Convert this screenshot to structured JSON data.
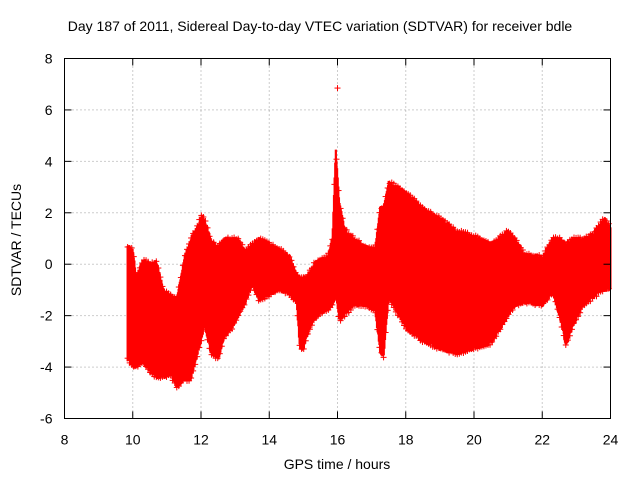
{
  "chart_data": {
    "type": "scatter",
    "title": "Day 187 of 2011, Sidereal Day-to-day VTEC variation (SDTVAR) for receiver bdle",
    "xlabel": "GPS time / hours",
    "ylabel": "SDTVAR / TECUs",
    "xlim": [
      8,
      24
    ],
    "ylim": [
      -6,
      8
    ],
    "xticks": [
      8,
      10,
      12,
      14,
      16,
      18,
      20,
      22,
      24
    ],
    "yticks": [
      -6,
      -4,
      -2,
      0,
      2,
      4,
      6,
      8
    ],
    "grid": true,
    "marker": "+",
    "series_color": "#ff0000",
    "outlier": {
      "x": 16.0,
      "y": 6.85
    },
    "envelope": [
      {
        "x": 9.85,
        "min": -3.7,
        "max": 0.7
      },
      {
        "x": 10.0,
        "min": -4.0,
        "max": 0.6
      },
      {
        "x": 10.1,
        "min": -4.0,
        "max": -0.5
      },
      {
        "x": 10.3,
        "min": -3.8,
        "max": 0.2
      },
      {
        "x": 10.5,
        "min": -4.2,
        "max": 0.0
      },
      {
        "x": 10.7,
        "min": -4.4,
        "max": 0.1
      },
      {
        "x": 10.9,
        "min": -4.4,
        "max": -1.0
      },
      {
        "x": 11.1,
        "min": -4.3,
        "max": -1.2
      },
      {
        "x": 11.3,
        "min": -4.8,
        "max": -1.3
      },
      {
        "x": 11.5,
        "min": -4.5,
        "max": 0.2
      },
      {
        "x": 11.7,
        "min": -4.5,
        "max": 1.0
      },
      {
        "x": 11.9,
        "min": -3.5,
        "max": 1.5
      },
      {
        "x": 12.0,
        "min": -3.0,
        "max": 1.9
      },
      {
        "x": 12.1,
        "min": -2.4,
        "max": 1.8
      },
      {
        "x": 12.3,
        "min": -3.5,
        "max": 0.9
      },
      {
        "x": 12.5,
        "min": -3.7,
        "max": 0.7
      },
      {
        "x": 12.7,
        "min": -2.8,
        "max": 1.0
      },
      {
        "x": 12.9,
        "min": -2.5,
        "max": 1.0
      },
      {
        "x": 13.1,
        "min": -2.0,
        "max": 1.0
      },
      {
        "x": 13.3,
        "min": -1.5,
        "max": 0.5
      },
      {
        "x": 13.5,
        "min": -0.8,
        "max": 0.8
      },
      {
        "x": 13.7,
        "min": -1.4,
        "max": 1.0
      },
      {
        "x": 14.0,
        "min": -1.2,
        "max": 0.8
      },
      {
        "x": 14.3,
        "min": -1.0,
        "max": 0.6
      },
      {
        "x": 14.6,
        "min": -1.2,
        "max": 0.3
      },
      {
        "x": 14.8,
        "min": -1.5,
        "max": -0.4
      },
      {
        "x": 14.9,
        "min": -3.3,
        "max": -0.5
      },
      {
        "x": 15.0,
        "min": -3.3,
        "max": -0.5
      },
      {
        "x": 15.1,
        "min": -2.8,
        "max": -0.5
      },
      {
        "x": 15.3,
        "min": -2.2,
        "max": 0.0
      },
      {
        "x": 15.5,
        "min": -1.9,
        "max": 0.2
      },
      {
        "x": 15.7,
        "min": -1.8,
        "max": 0.3
      },
      {
        "x": 15.85,
        "min": -1.6,
        "max": 1.0
      },
      {
        "x": 15.95,
        "min": -1.2,
        "max": 4.5
      },
      {
        "x": 16.05,
        "min": -2.2,
        "max": 2.5
      },
      {
        "x": 16.2,
        "min": -2.0,
        "max": 1.4
      },
      {
        "x": 16.5,
        "min": -1.6,
        "max": 1.0
      },
      {
        "x": 16.8,
        "min": -1.6,
        "max": 0.7
      },
      {
        "x": 17.1,
        "min": -1.8,
        "max": 0.6
      },
      {
        "x": 17.25,
        "min": -3.4,
        "max": 2.2
      },
      {
        "x": 17.35,
        "min": -3.6,
        "max": 2.2
      },
      {
        "x": 17.5,
        "min": -1.3,
        "max": 3.2
      },
      {
        "x": 18.0,
        "min": -2.5,
        "max": 2.8
      },
      {
        "x": 18.5,
        "min": -3.0,
        "max": 2.2
      },
      {
        "x": 19.0,
        "min": -3.3,
        "max": 1.8
      },
      {
        "x": 19.5,
        "min": -3.5,
        "max": 1.3
      },
      {
        "x": 20.0,
        "min": -3.3,
        "max": 1.1
      },
      {
        "x": 20.5,
        "min": -3.1,
        "max": 0.8
      },
      {
        "x": 21.0,
        "min": -2.0,
        "max": 1.3
      },
      {
        "x": 21.2,
        "min": -1.6,
        "max": 1.0
      },
      {
        "x": 21.5,
        "min": -1.5,
        "max": 0.4
      },
      {
        "x": 22.0,
        "min": -1.6,
        "max": 0.3
      },
      {
        "x": 22.3,
        "min": -1.1,
        "max": 1.0
      },
      {
        "x": 22.5,
        "min": -2.0,
        "max": 1.0
      },
      {
        "x": 22.7,
        "min": -3.2,
        "max": 0.8
      },
      {
        "x": 22.9,
        "min": -2.4,
        "max": 1.0
      },
      {
        "x": 23.2,
        "min": -1.6,
        "max": 1.0
      },
      {
        "x": 23.5,
        "min": -1.3,
        "max": 1.2
      },
      {
        "x": 23.8,
        "min": -1.0,
        "max": 1.8
      },
      {
        "x": 24.0,
        "min": -1.0,
        "max": 1.5
      }
    ],
    "gaps": [
      [
        10.05,
        10.1,
        -0.4,
        0.45
      ],
      [
        13.2,
        13.4,
        -2.8,
        0.0
      ]
    ]
  }
}
